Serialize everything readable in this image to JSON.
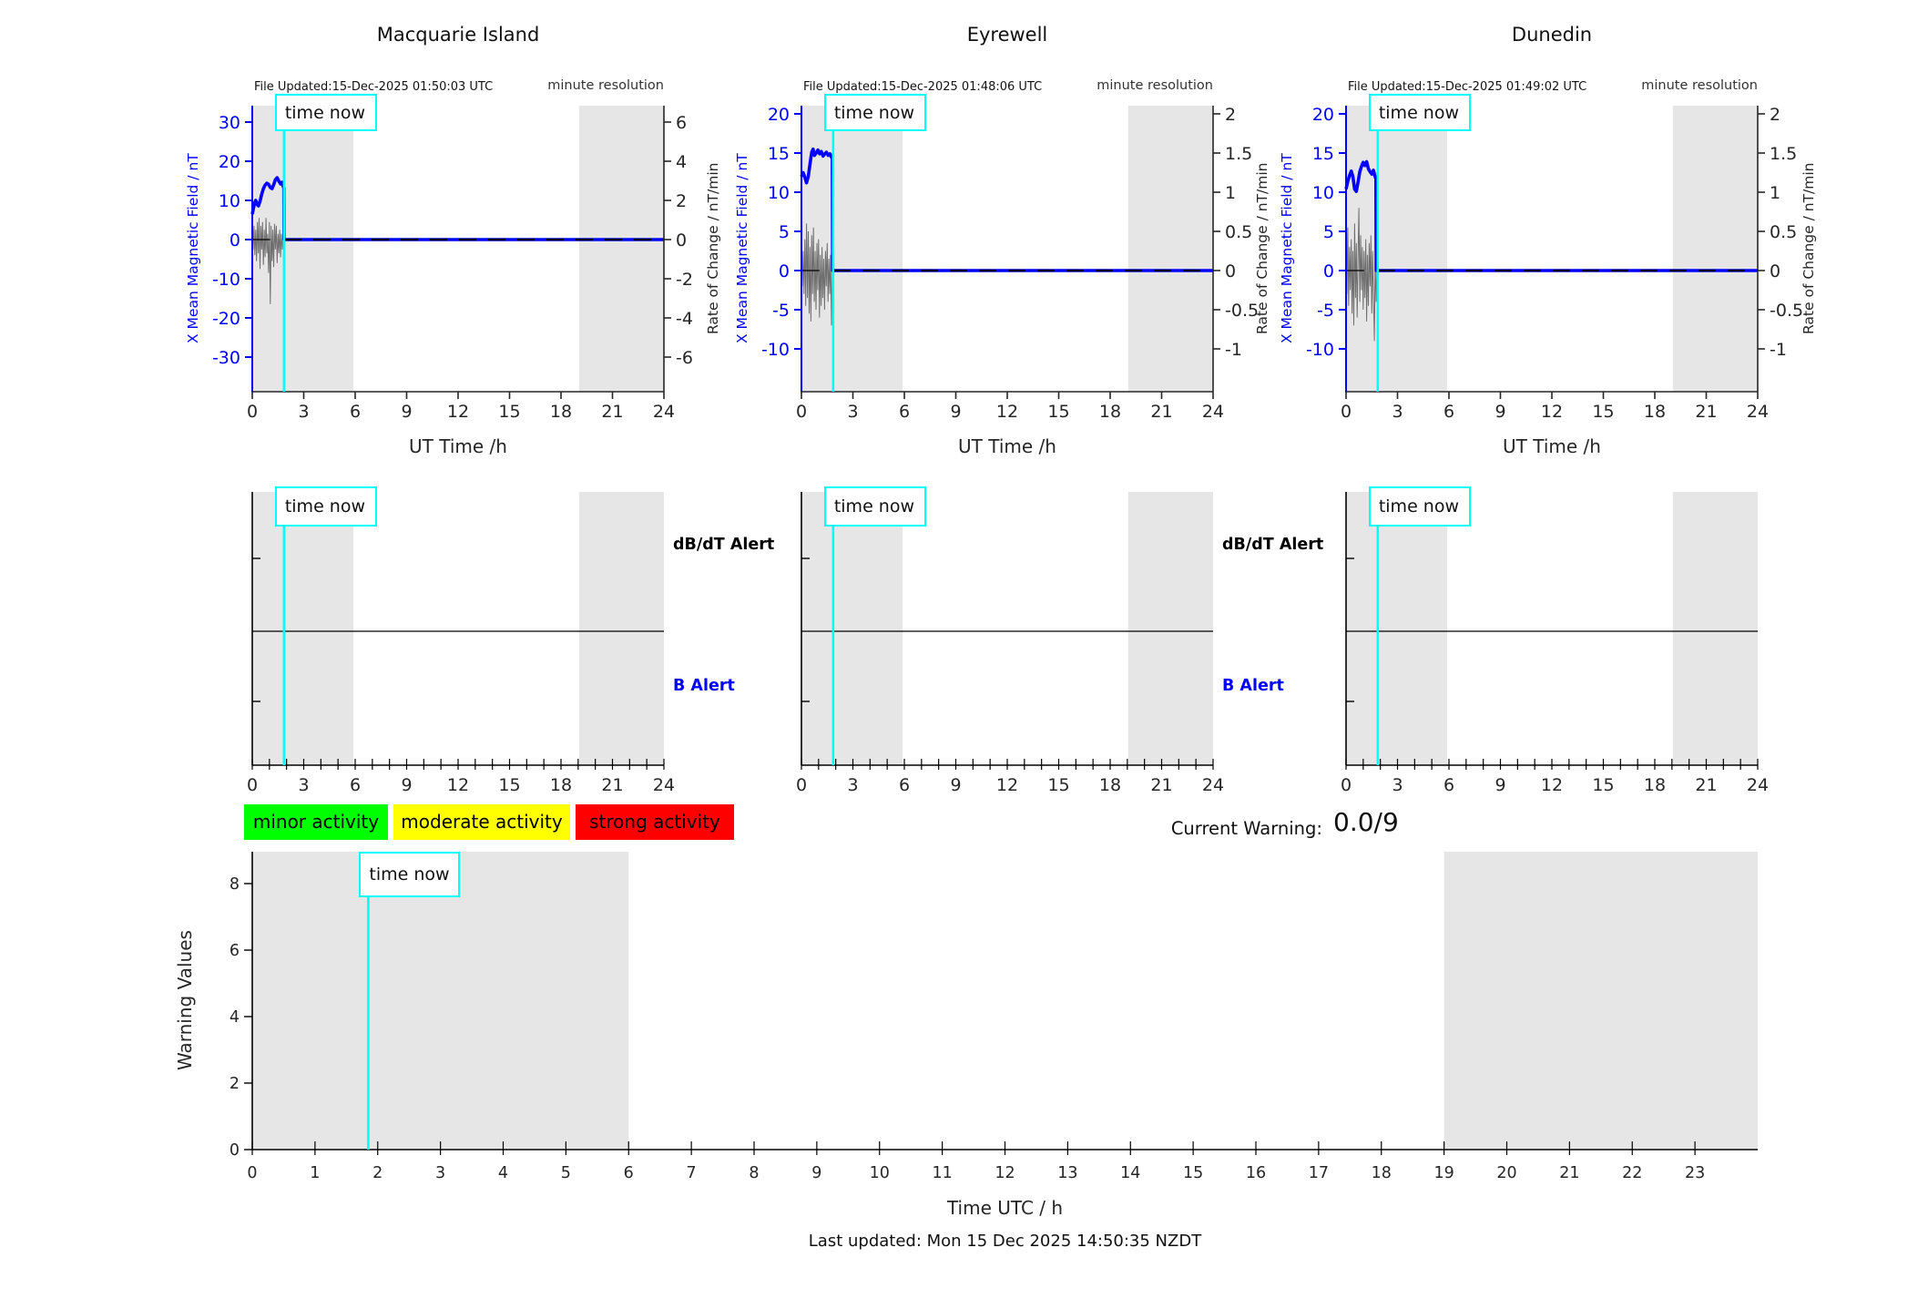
{
  "stations": [
    {
      "name": "Macquarie Island",
      "file_updated": "File Updated:15-Dec-2025 01:50:03 UTC"
    },
    {
      "name": "Eyrewell",
      "file_updated": "File Updated:15-Dec-2025 01:48:06 UTC"
    },
    {
      "name": "Dunedin",
      "file_updated": "File Updated:15-Dec-2025 01:49:02 UTC"
    }
  ],
  "labels": {
    "minute_resolution": "minute resolution"
  },
  "time_now": {
    "label": "time now",
    "x_hours": 1.85
  },
  "alerts": {
    "dbdt_label": "dB/dT Alert",
    "b_label": "B Alert"
  },
  "legend": [
    {
      "label": "minor activity",
      "color": "#00ff00"
    },
    {
      "label": "moderate activity",
      "color": "#ffff00"
    },
    {
      "label": "strong activity",
      "color": "#ff0000"
    }
  ],
  "current_warning": {
    "label": "Current Warning:",
    "value": "0.0/9"
  },
  "footer": {
    "last_updated": "Last updated: Mon 15 Dec 2025 14:50:35 NZDT"
  },
  "colors": {
    "field_line": "#0000ff",
    "time_now_line": "#00ffff",
    "night_shading": "#e6e6e6",
    "rate_noise": "#6f6f6f",
    "axis": "#262626",
    "alert_b": "#0000ff"
  },
  "chart_data": [
    {
      "type": "line",
      "station": "Macquarie Island",
      "xlabel": "UT Time /h",
      "xlim": [
        0,
        24
      ],
      "xticks": [
        0,
        3,
        6,
        9,
        12,
        15,
        18,
        21,
        24
      ],
      "left_axis": {
        "label": "X Mean Magnetic Field / nT",
        "ticks": [
          30,
          20,
          10,
          0,
          -10,
          -20,
          -30
        ],
        "ylim": [
          -38,
          32
        ]
      },
      "right_axis": {
        "label": "Rate of Change / nT/min",
        "ticks": [
          6,
          4,
          2,
          0,
          -2,
          -4,
          -6
        ],
        "ylim": [
          -7.6,
          6.4
        ]
      },
      "night_shading": [
        [
          0,
          5.9
        ],
        [
          19.05,
          24
        ]
      ],
      "time_now_x": 1.85,
      "series": [
        {
          "name": "x_mean_field_nT",
          "points": [
            [
              0,
              6.5
            ],
            [
              0.07,
              8.0
            ],
            [
              0.14,
              9.4
            ],
            [
              0.2,
              10.0
            ],
            [
              0.28,
              9.0
            ],
            [
              0.36,
              8.6
            ],
            [
              0.45,
              9.8
            ],
            [
              0.55,
              11.6
            ],
            [
              0.65,
              13.0
            ],
            [
              0.75,
              13.9
            ],
            [
              0.85,
              14.4
            ],
            [
              0.95,
              14.1
            ],
            [
              1.05,
              13.3
            ],
            [
              1.15,
              13.0
            ],
            [
              1.25,
              14.0
            ],
            [
              1.35,
              15.3
            ],
            [
              1.45,
              15.8
            ],
            [
              1.55,
              14.9
            ],
            [
              1.65,
              14.2
            ],
            [
              1.73,
              14.6
            ],
            [
              1.8,
              13.6
            ],
            [
              1.84,
              13.2
            ],
            [
              1.85,
              0
            ],
            [
              24,
              0
            ]
          ]
        },
        {
          "name": "rate_of_change_noise_left_units",
          "points": [
            [
              0,
              1.5
            ],
            [
              0.05,
              -2.5
            ],
            [
              0.1,
              3.5
            ],
            [
              0.15,
              -4
            ],
            [
              0.2,
              2.5
            ],
            [
              0.25,
              -5.5
            ],
            [
              0.3,
              4.5
            ],
            [
              0.35,
              -3.5
            ],
            [
              0.4,
              5.5
            ],
            [
              0.45,
              -7.5
            ],
            [
              0.5,
              3.5
            ],
            [
              0.55,
              -2.5
            ],
            [
              0.6,
              4.5
            ],
            [
              0.65,
              -6.5
            ],
            [
              0.7,
              2.5
            ],
            [
              0.75,
              -4.5
            ],
            [
              0.8,
              5.5
            ],
            [
              0.85,
              -3.5
            ],
            [
              0.9,
              1.5
            ],
            [
              0.95,
              -8.5
            ],
            [
              1.0,
              4.5
            ],
            [
              1.05,
              -16.5
            ],
            [
              1.1,
              3.5
            ],
            [
              1.15,
              -5.5
            ],
            [
              1.2,
              2.5
            ],
            [
              1.25,
              -7
            ],
            [
              1.3,
              4
            ],
            [
              1.35,
              -2.5
            ],
            [
              1.4,
              3.5
            ],
            [
              1.45,
              -6
            ],
            [
              1.5,
              1.5
            ],
            [
              1.55,
              -3.5
            ],
            [
              1.6,
              2.5
            ],
            [
              1.65,
              -4.5
            ],
            [
              1.7,
              1.5
            ],
            [
              1.75,
              -2.5
            ],
            [
              1.8,
              0.5
            ]
          ]
        }
      ]
    },
    {
      "type": "line",
      "station": "Eyrewell",
      "xlabel": "UT Time /h",
      "xlim": [
        0,
        24
      ],
      "xticks": [
        0,
        3,
        6,
        9,
        12,
        15,
        18,
        21,
        24
      ],
      "left_axis": {
        "label": "X Mean Magnetic Field / nT",
        "ticks": [
          20,
          15,
          10,
          5,
          0,
          -5,
          -10
        ],
        "ylim": [
          -12.4,
          21.1
        ]
      },
      "right_axis": {
        "label": "Rate of Change / nT/min",
        "ticks": [
          2,
          1.5,
          1,
          0.5,
          0,
          -0.5,
          -1
        ],
        "ylim": [
          -1.24,
          2.11
        ]
      },
      "night_shading": [
        [
          0,
          5.9
        ],
        [
          19.05,
          24
        ]
      ],
      "time_now_x": 1.85,
      "series": [
        {
          "name": "x_mean_field_nT",
          "points": [
            [
              0,
              12.0
            ],
            [
              0.1,
              12.5
            ],
            [
              0.2,
              11.9
            ],
            [
              0.3,
              11.2
            ],
            [
              0.4,
              12.0
            ],
            [
              0.5,
              13.6
            ],
            [
              0.6,
              15.1
            ],
            [
              0.68,
              15.5
            ],
            [
              0.76,
              14.7
            ],
            [
              0.86,
              15.0
            ],
            [
              0.96,
              15.4
            ],
            [
              1.06,
              14.9
            ],
            [
              1.16,
              15.2
            ],
            [
              1.26,
              14.6
            ],
            [
              1.36,
              14.9
            ],
            [
              1.46,
              15.1
            ],
            [
              1.56,
              14.7
            ],
            [
              1.66,
              14.9
            ],
            [
              1.74,
              14.5
            ],
            [
              1.8,
              14.7
            ],
            [
              1.82,
              0
            ],
            [
              24,
              0
            ]
          ]
        },
        {
          "name": "rate_of_change_noise_left_units",
          "points": [
            [
              0,
              1
            ],
            [
              0.05,
              -2
            ],
            [
              0.1,
              2.5
            ],
            [
              0.15,
              -3
            ],
            [
              0.2,
              4
            ],
            [
              0.25,
              -4.5
            ],
            [
              0.3,
              6
            ],
            [
              0.35,
              -3.5
            ],
            [
              0.4,
              5
            ],
            [
              0.45,
              -5.5
            ],
            [
              0.5,
              3
            ],
            [
              0.55,
              -6.5
            ],
            [
              0.6,
              4.5
            ],
            [
              0.65,
              -3
            ],
            [
              0.7,
              5.5
            ],
            [
              0.75,
              -4
            ],
            [
              0.8,
              2.5
            ],
            [
              0.85,
              -5
            ],
            [
              0.9,
              3.5
            ],
            [
              0.95,
              -2.5
            ],
            [
              1.0,
              4
            ],
            [
              1.05,
              -6
            ],
            [
              1.1,
              2
            ],
            [
              1.15,
              -4.5
            ],
            [
              1.2,
              3
            ],
            [
              1.25,
              -3.5
            ],
            [
              1.3,
              1.5
            ],
            [
              1.35,
              -5
            ],
            [
              1.4,
              2.5
            ],
            [
              1.45,
              -2
            ],
            [
              1.5,
              3.5
            ],
            [
              1.55,
              -4
            ],
            [
              1.6,
              1.5
            ],
            [
              1.65,
              -3
            ],
            [
              1.7,
              2
            ],
            [
              1.75,
              -7
            ],
            [
              1.8,
              0.5
            ]
          ]
        }
      ]
    },
    {
      "type": "line",
      "station": "Dunedin",
      "xlabel": "UT Time /h",
      "xlim": [
        0,
        24
      ],
      "xticks": [
        0,
        3,
        6,
        9,
        12,
        15,
        18,
        21,
        24
      ],
      "left_axis": {
        "label": "X Mean Magnetic Field / nT",
        "ticks": [
          20,
          15,
          10,
          5,
          0,
          -5,
          -10
        ],
        "ylim": [
          -12.4,
          21.1
        ]
      },
      "right_axis": {
        "label": "Rate of Change / nT/min",
        "ticks": [
          2,
          1.5,
          1,
          0.5,
          0,
          -0.5,
          -1
        ],
        "ylim": [
          -1.24,
          2.11
        ]
      },
      "night_shading": [
        [
          0,
          5.9
        ],
        [
          19.05,
          24
        ]
      ],
      "time_now_x": 1.85,
      "series": [
        {
          "name": "x_mean_field_nT",
          "points": [
            [
              0,
              10.4
            ],
            [
              0.1,
              11.4
            ],
            [
              0.2,
              12.1
            ],
            [
              0.3,
              12.7
            ],
            [
              0.4,
              12.0
            ],
            [
              0.5,
              10.4
            ],
            [
              0.6,
              10.1
            ],
            [
              0.7,
              11.3
            ],
            [
              0.8,
              12.6
            ],
            [
              0.9,
              13.3
            ],
            [
              1.0,
              13.8
            ],
            [
              1.1,
              13.4
            ],
            [
              1.2,
              13.9
            ],
            [
              1.3,
              13.0
            ],
            [
              1.4,
              12.6
            ],
            [
              1.5,
              12.3
            ],
            [
              1.6,
              12.8
            ],
            [
              1.68,
              12.1
            ],
            [
              1.74,
              11.7
            ],
            [
              1.76,
              0
            ],
            [
              24,
              0
            ]
          ]
        },
        {
          "name": "rate_of_change_noise_left_units",
          "points": [
            [
              0,
              2
            ],
            [
              0.05,
              -3
            ],
            [
              0.1,
              5.5
            ],
            [
              0.15,
              -4.5
            ],
            [
              0.2,
              3
            ],
            [
              0.25,
              -2.5
            ],
            [
              0.3,
              4
            ],
            [
              0.35,
              -5.5
            ],
            [
              0.4,
              2.5
            ],
            [
              0.45,
              -7
            ],
            [
              0.5,
              6
            ],
            [
              0.55,
              -3.5
            ],
            [
              0.6,
              3.5
            ],
            [
              0.65,
              -6
            ],
            [
              0.7,
              2
            ],
            [
              0.75,
              8
            ],
            [
              0.8,
              -4
            ],
            [
              0.85,
              4.5
            ],
            [
              0.9,
              -2.5
            ],
            [
              0.95,
              3
            ],
            [
              1.0,
              -5
            ],
            [
              1.05,
              2.5
            ],
            [
              1.1,
              -3.5
            ],
            [
              1.15,
              4
            ],
            [
              1.2,
              -6.5
            ],
            [
              1.25,
              2
            ],
            [
              1.3,
              -4.5
            ],
            [
              1.35,
              3.5
            ],
            [
              1.4,
              -2
            ],
            [
              1.45,
              4.5
            ],
            [
              1.5,
              -5.5
            ],
            [
              1.55,
              2.5
            ],
            [
              1.6,
              -3
            ],
            [
              1.65,
              -9
            ],
            [
              1.7,
              1.5
            ],
            [
              1.75,
              -4
            ],
            [
              1.8,
              0.5
            ]
          ]
        }
      ]
    },
    {
      "type": "alert-timeline",
      "station": "Macquarie Island",
      "xlim": [
        0,
        24
      ],
      "xticks": [
        0,
        3,
        6,
        9,
        12,
        15,
        18,
        21,
        24
      ],
      "night_shading": [
        [
          0,
          5.9
        ],
        [
          19.05,
          24
        ]
      ],
      "time_now_x": 1.85,
      "bands": [
        "dB/dT Alert",
        "B Alert"
      ],
      "events": []
    },
    {
      "type": "alert-timeline",
      "station": "Eyrewell",
      "xlim": [
        0,
        24
      ],
      "xticks": [
        0,
        3,
        6,
        9,
        12,
        15,
        18,
        21,
        24
      ],
      "night_shading": [
        [
          0,
          5.9
        ],
        [
          19.05,
          24
        ]
      ],
      "time_now_x": 1.85,
      "bands": [
        "dB/dT Alert",
        "B Alert"
      ],
      "events": []
    },
    {
      "type": "alert-timeline",
      "station": "Dunedin",
      "xlim": [
        0,
        24
      ],
      "xticks": [
        0,
        3,
        6,
        9,
        12,
        15,
        18,
        21,
        24
      ],
      "night_shading": [
        [
          0,
          5.9
        ],
        [
          19.05,
          24
        ]
      ],
      "time_now_x": 1.85,
      "bands": [
        "dB/dT Alert",
        "B Alert"
      ],
      "events": []
    },
    {
      "type": "line",
      "name": "warning-values",
      "ylabel": "Warning Values",
      "xlabel": "Time UTC / h",
      "yticks": [
        0,
        2,
        4,
        6,
        8
      ],
      "ylim": [
        0,
        8.96
      ],
      "xlim": [
        0,
        24
      ],
      "xticks": [
        0,
        1,
        2,
        3,
        4,
        5,
        6,
        7,
        8,
        9,
        10,
        11,
        12,
        13,
        14,
        15,
        16,
        17,
        18,
        19,
        20,
        21,
        22,
        23
      ],
      "night_shading": [
        [
          0,
          6
        ],
        [
          19,
          24
        ]
      ],
      "time_now_x": 1.85,
      "values": []
    }
  ]
}
